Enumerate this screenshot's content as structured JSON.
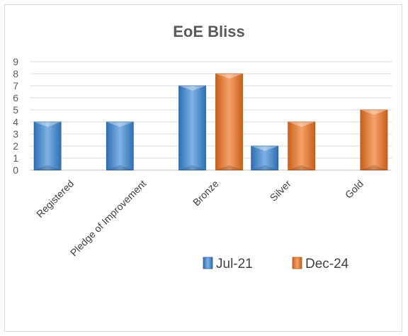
{
  "chart_data": {
    "type": "bar",
    "title": "EoE Bliss",
    "categories": [
      "Registered",
      "Pledge of Improvement",
      "Bronze",
      "Silver",
      "Gold"
    ],
    "series": [
      {
        "name": "Jul-21",
        "values": [
          4,
          4,
          7,
          2,
          0
        ],
        "color": "#4a8fd0"
      },
      {
        "name": "Dec-24",
        "values": [
          0,
          0,
          8,
          4,
          5
        ],
        "color": "#ed7d31"
      }
    ],
    "yticks": [
      0,
      1,
      2,
      3,
      4,
      5,
      6,
      7,
      8,
      9
    ],
    "ylim": [
      0,
      9
    ],
    "grid": true,
    "legend": "bottom-right"
  }
}
